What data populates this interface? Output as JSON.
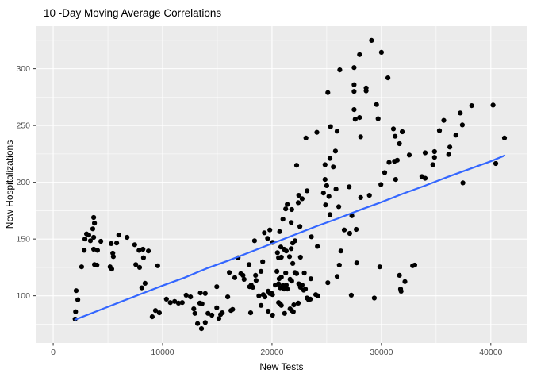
{
  "chart_data": {
    "type": "scatter",
    "title": "10 -Day Moving Average Correlations",
    "xlabel": "New Tests",
    "ylabel": "New Hospitalizations",
    "x_ticks": [
      0,
      10000,
      20000,
      30000,
      40000
    ],
    "x_tick_labels": [
      "0",
      "10000",
      "20000",
      "30000",
      "40000"
    ],
    "y_ticks": [
      100,
      150,
      200,
      250,
      300
    ],
    "y_tick_labels": [
      "100",
      "150",
      "200",
      "250",
      "300"
    ],
    "x_minor_ticks": [
      5000,
      15000,
      25000,
      35000
    ],
    "y_minor_ticks": [
      75,
      125,
      175,
      225,
      275,
      325
    ],
    "xlim": [
      -1600,
      43350
    ],
    "ylim": [
      58.5,
      337.5
    ],
    "grid": true,
    "legend": false,
    "colors": {
      "panel_bg": "#EBEBEB",
      "grid_major": "#FFFFFF",
      "grid_minor": "#FFFFFF",
      "point": "#000000",
      "smooth_line": "#3366FF",
      "tick": "#333333",
      "axis_text": "#4D4D4D",
      "title_text": "#000000"
    },
    "smooth_line": [
      [
        2000,
        79
      ],
      [
        4000,
        86.5
      ],
      [
        6000,
        94
      ],
      [
        8000,
        101.5
      ],
      [
        10000,
        109
      ],
      [
        12000,
        116
      ],
      [
        14000,
        124
      ],
      [
        16000,
        131
      ],
      [
        18000,
        138.5
      ],
      [
        20000,
        146
      ],
      [
        22000,
        153.5
      ],
      [
        24000,
        161
      ],
      [
        26000,
        168
      ],
      [
        28000,
        175.5
      ],
      [
        30000,
        182.5
      ],
      [
        32000,
        190
      ],
      [
        34000,
        197
      ],
      [
        36000,
        204.5
      ],
      [
        38000,
        211.5
      ],
      [
        40000,
        218.5
      ],
      [
        41250,
        223.5
      ]
    ],
    "points": [
      [
        2000,
        79.5
      ],
      [
        2050,
        86
      ],
      [
        2100,
        104.5
      ],
      [
        2250,
        96.5
      ],
      [
        2600,
        125.5
      ],
      [
        2830,
        140
      ],
      [
        2900,
        150
      ],
      [
        3050,
        154.5
      ],
      [
        3250,
        153.5
      ],
      [
        3400,
        148.5
      ],
      [
        3620,
        159
      ],
      [
        3700,
        169
      ],
      [
        3700,
        151.5
      ],
      [
        3700,
        141
      ],
      [
        3770,
        164
      ],
      [
        3770,
        127.5
      ],
      [
        4000,
        127
      ],
      [
        4050,
        140
      ],
      [
        4350,
        148
      ],
      [
        5200,
        125.5
      ],
      [
        5300,
        146
      ],
      [
        5350,
        123.5
      ],
      [
        5450,
        137.5
      ],
      [
        5500,
        134.5
      ],
      [
        5800,
        146.5
      ],
      [
        6000,
        153.5
      ],
      [
        6750,
        151.5
      ],
      [
        7450,
        145
      ],
      [
        7550,
        127.5
      ],
      [
        7850,
        140
      ],
      [
        7900,
        125
      ],
      [
        8100,
        107
      ],
      [
        8200,
        141
      ],
      [
        8250,
        133.5
      ],
      [
        8400,
        111
      ],
      [
        8700,
        139.5
      ],
      [
        9050,
        81.5
      ],
      [
        9350,
        87
      ],
      [
        9550,
        126.5
      ],
      [
        9700,
        85
      ],
      [
        10350,
        97
      ],
      [
        10700,
        94
      ],
      [
        11100,
        95
      ],
      [
        11450,
        93.5
      ],
      [
        11800,
        94
      ],
      [
        12150,
        100.5
      ],
      [
        12550,
        99
      ],
      [
        12850,
        88.5
      ],
      [
        12950,
        84.5
      ],
      [
        13200,
        75.5
      ],
      [
        13400,
        93.5
      ],
      [
        13450,
        102.5
      ],
      [
        13550,
        71
      ],
      [
        13600,
        93
      ],
      [
        13900,
        102
      ],
      [
        13900,
        76.5
      ],
      [
        14150,
        84.5
      ],
      [
        14500,
        83
      ],
      [
        14950,
        108
      ],
      [
        14950,
        89.5
      ],
      [
        15150,
        80
      ],
      [
        15300,
        83.5
      ],
      [
        15450,
        85
      ],
      [
        15950,
        99
      ],
      [
        16100,
        120.5
      ],
      [
        16250,
        87
      ],
      [
        16400,
        88
      ],
      [
        16600,
        116
      ],
      [
        16900,
        133.5
      ],
      [
        17150,
        119.5
      ],
      [
        17350,
        118
      ],
      [
        17450,
        114.5
      ],
      [
        17900,
        127.5
      ],
      [
        17950,
        108
      ],
      [
        18050,
        85
      ],
      [
        18100,
        109.5
      ],
      [
        18250,
        107.5
      ],
      [
        18400,
        148.5
      ],
      [
        18500,
        118
      ],
      [
        18550,
        113.5
      ],
      [
        18800,
        100
      ],
      [
        19000,
        121.5
      ],
      [
        19000,
        91.5
      ],
      [
        19150,
        130
      ],
      [
        19200,
        101
      ],
      [
        19300,
        155.5
      ],
      [
        19350,
        99
      ],
      [
        19600,
        150.5
      ],
      [
        19650,
        104
      ],
      [
        19650,
        86.5
      ],
      [
        19800,
        158
      ],
      [
        19800,
        102
      ],
      [
        19950,
        102.5
      ],
      [
        20050,
        147
      ],
      [
        20050,
        101
      ],
      [
        20050,
        83
      ],
      [
        20300,
        109.5
      ],
      [
        20450,
        121.5
      ],
      [
        20500,
        138
      ],
      [
        20600,
        133.5
      ],
      [
        20600,
        110.5
      ],
      [
        20600,
        94
      ],
      [
        20650,
        115
      ],
      [
        20700,
        156.5
      ],
      [
        20750,
        107
      ],
      [
        20750,
        93
      ],
      [
        20800,
        143
      ],
      [
        20850,
        134
      ],
      [
        20850,
        116.5
      ],
      [
        20850,
        91.5
      ],
      [
        21000,
        167.5
      ],
      [
        21000,
        109
      ],
      [
        21100,
        141
      ],
      [
        21100,
        106
      ],
      [
        21150,
        84.5
      ],
      [
        21250,
        120
      ],
      [
        21250,
        176.5
      ],
      [
        21300,
        139.5
      ],
      [
        21300,
        109.5
      ],
      [
        21400,
        180.5
      ],
      [
        21400,
        106
      ],
      [
        21600,
        134.5
      ],
      [
        21650,
        114.5
      ],
      [
        21650,
        88.5
      ],
      [
        21750,
        164.5
      ],
      [
        21750,
        141.5
      ],
      [
        21800,
        176
      ],
      [
        21800,
        113
      ],
      [
        21800,
        87
      ],
      [
        21900,
        146.5
      ],
      [
        21900,
        128.5
      ],
      [
        21950,
        86
      ],
      [
        22000,
        92
      ],
      [
        22100,
        148.5
      ],
      [
        22100,
        120.5
      ],
      [
        22250,
        215
      ],
      [
        22250,
        119.5
      ],
      [
        22400,
        182
      ],
      [
        22400,
        93.5
      ],
      [
        22450,
        188.5
      ],
      [
        22450,
        110.5
      ],
      [
        22550,
        161
      ],
      [
        22600,
        134
      ],
      [
        22600,
        107.5
      ],
      [
        22750,
        185.5
      ],
      [
        22750,
        109.5
      ],
      [
        22900,
        105
      ],
      [
        22950,
        120
      ],
      [
        23050,
        106
      ],
      [
        23100,
        239
      ],
      [
        23200,
        192.5
      ],
      [
        23200,
        98
      ],
      [
        23350,
        96.5
      ],
      [
        23500,
        97
      ],
      [
        23550,
        115
      ],
      [
        23600,
        152
      ],
      [
        24000,
        101
      ],
      [
        24100,
        244
      ],
      [
        24150,
        143.5
      ],
      [
        24200,
        100
      ],
      [
        24700,
        190.5
      ],
      [
        24850,
        215.5
      ],
      [
        24850,
        202.5
      ],
      [
        24900,
        180
      ],
      [
        25000,
        197
      ],
      [
        25100,
        279
      ],
      [
        25100,
        111.5
      ],
      [
        25200,
        187.5
      ],
      [
        25300,
        221
      ],
      [
        25300,
        171.5
      ],
      [
        25350,
        249
      ],
      [
        25600,
        213.5
      ],
      [
        25800,
        227.5
      ],
      [
        25850,
        194
      ],
      [
        25950,
        245
      ],
      [
        25950,
        117
      ],
      [
        26100,
        178.5
      ],
      [
        26150,
        127
      ],
      [
        26200,
        299
      ],
      [
        26300,
        139.5
      ],
      [
        26600,
        158
      ],
      [
        27050,
        196
      ],
      [
        27100,
        155
      ],
      [
        27250,
        100.5
      ],
      [
        27300,
        170.5
      ],
      [
        27500,
        301
      ],
      [
        27500,
        286
      ],
      [
        27500,
        280
      ],
      [
        27500,
        264
      ],
      [
        27600,
        255.5
      ],
      [
        27700,
        158.5
      ],
      [
        27750,
        129
      ],
      [
        28000,
        312.5
      ],
      [
        28000,
        257
      ],
      [
        28100,
        240
      ],
      [
        28100,
        186.5
      ],
      [
        28600,
        283
      ],
      [
        28600,
        280.5
      ],
      [
        28900,
        188.5
      ],
      [
        29100,
        325
      ],
      [
        29350,
        98
      ],
      [
        29550,
        268.5
      ],
      [
        29700,
        256
      ],
      [
        29850,
        125.5
      ],
      [
        29950,
        198
      ],
      [
        30000,
        314.5
      ],
      [
        30300,
        208.5
      ],
      [
        30600,
        292
      ],
      [
        30700,
        217.5
      ],
      [
        31100,
        247
      ],
      [
        31200,
        218.5
      ],
      [
        31250,
        240.5
      ],
      [
        31300,
        202.5
      ],
      [
        31450,
        219.5
      ],
      [
        31650,
        234
      ],
      [
        31650,
        118
      ],
      [
        31750,
        106
      ],
      [
        31800,
        104
      ],
      [
        31900,
        244.5
      ],
      [
        32150,
        112.5
      ],
      [
        32550,
        224
      ],
      [
        32850,
        126.5
      ],
      [
        33050,
        127
      ],
      [
        33700,
        205
      ],
      [
        34000,
        226
      ],
      [
        34000,
        203.5
      ],
      [
        34700,
        215.5
      ],
      [
        34850,
        227
      ],
      [
        34850,
        222
      ],
      [
        35300,
        245.5
      ],
      [
        35700,
        254.5
      ],
      [
        36150,
        224.5
      ],
      [
        36250,
        231
      ],
      [
        36800,
        241.5
      ],
      [
        37200,
        261
      ],
      [
        37400,
        250.5
      ],
      [
        37450,
        199.5
      ],
      [
        38250,
        267.5
      ],
      [
        40200,
        268
      ],
      [
        40450,
        216.5
      ],
      [
        41250,
        239
      ]
    ]
  }
}
